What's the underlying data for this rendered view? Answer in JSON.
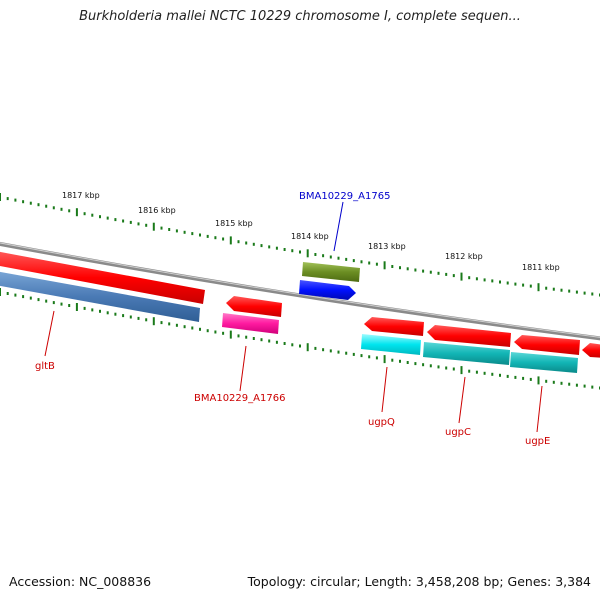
{
  "title": "Burkholderia mallei NCTC 10229 chromosome I, complete sequen...",
  "footer": {
    "accession": "Accession: NC_008836",
    "summary": "Topology: circular; Length: 3,458,208 bp; Genes: 3,384"
  },
  "scale_ticks": [
    "1817 kbp",
    "1816 kbp",
    "1815 kbp",
    "1814 kbp",
    "1813 kbp",
    "1812 kbp",
    "1811 kbp"
  ],
  "gene_labels": {
    "gltB": "gltB",
    "bma1766": "BMA10229_A1766",
    "bma1765": "BMA10229_A1765",
    "ugpQ": "ugpQ",
    "ugpC": "ugpC",
    "ugpE": "ugpE"
  },
  "colors": {
    "backbone": "#8a8a8a",
    "cds_forward": "#ff0000",
    "cds_reverse": "#ff0000",
    "gene_blue": "#3a6ea5",
    "gene_magenta": "#ff1aa0",
    "gene_olive": "#6b8e23",
    "gene_bright_blue": "#0010ff",
    "gene_cyan": "#00e5ee",
    "gene_teal": "#12b5b5",
    "tick_green": "#1a7a1a",
    "label_red": "#cc0000",
    "label_blue": "#0000cc"
  }
}
